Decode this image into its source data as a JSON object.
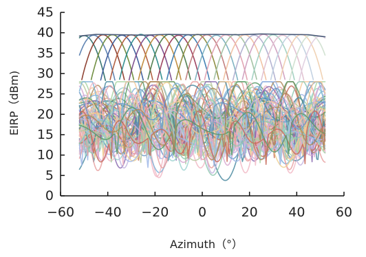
{
  "chart_data": {
    "type": "line",
    "title": "",
    "xlabel": "Azimuth（°）",
    "ylabel": "EIRP（dBm)",
    "xlim": [
      -60,
      60
    ],
    "ylim": [
      0,
      45
    ],
    "xticks": [
      -60,
      -40,
      -20,
      0,
      20,
      40,
      60
    ],
    "yticks": [
      0,
      5,
      10,
      15,
      20,
      25,
      30,
      35,
      40,
      45
    ],
    "grid": false,
    "legend": "none",
    "description_of_series": "Overlapping beam patterns over azimuth -52 to 52 degrees: main-beam series peak near 39.5 dBm, sidelobe series range roughly 2 to 28 dBm",
    "envelope_series": {
      "color": "#4a5a78",
      "x": [
        -52,
        -45,
        -35,
        -25,
        -15,
        -5,
        5,
        15,
        25,
        35,
        45,
        52
      ],
      "y": [
        39.2,
        39.6,
        39.5,
        39.4,
        39.6,
        39.5,
        39.6,
        39.5,
        39.7,
        39.6,
        39.5,
        39.0
      ]
    },
    "main_beam_series": [
      {
        "peak_x": -50,
        "peak_y": 39.3,
        "color": "#2f6f6a"
      },
      {
        "peak_x": -46,
        "peak_y": 39.4,
        "color": "#5a7fb0"
      },
      {
        "peak_x": -42,
        "peak_y": 39.5,
        "color": "#8a3a2a"
      },
      {
        "peak_x": -38,
        "peak_y": 39.5,
        "color": "#6a8a3a"
      },
      {
        "peak_x": -34,
        "peak_y": 39.4,
        "color": "#3a5a9a"
      },
      {
        "peak_x": -30,
        "peak_y": 39.5,
        "color": "#b05a3a"
      },
      {
        "peak_x": -26,
        "peak_y": 39.6,
        "color": "#2a8a8a"
      },
      {
        "peak_x": -22,
        "peak_y": 39.4,
        "color": "#7a4a8a"
      },
      {
        "peak_x": -18,
        "peak_y": 39.5,
        "color": "#c08a3a"
      },
      {
        "peak_x": -14,
        "peak_y": 39.6,
        "color": "#4a7a4a"
      },
      {
        "peak_x": -10,
        "peak_y": 39.4,
        "color": "#9a3a5a"
      },
      {
        "peak_x": -6,
        "peak_y": 39.5,
        "color": "#3a7ab0"
      },
      {
        "peak_x": -2,
        "peak_y": 39.6,
        "color": "#8a8a3a"
      },
      {
        "peak_x": 2,
        "peak_y": 39.5,
        "color": "#c07a7a"
      },
      {
        "peak_x": 6,
        "peak_y": 39.4,
        "color": "#7ab0c0"
      },
      {
        "peak_x": 10,
        "peak_y": 39.5,
        "color": "#e0a0b0"
      },
      {
        "peak_x": 14,
        "peak_y": 39.6,
        "color": "#a0c0a0"
      },
      {
        "peak_x": 18,
        "peak_y": 39.5,
        "color": "#f0c0a0"
      },
      {
        "peak_x": 22,
        "peak_y": 39.4,
        "color": "#b0b0d0"
      },
      {
        "peak_x": 26,
        "peak_y": 39.6,
        "color": "#d0a0c0"
      },
      {
        "peak_x": 30,
        "peak_y": 39.5,
        "color": "#a0d0c0"
      },
      {
        "peak_x": 34,
        "peak_y": 39.4,
        "color": "#e0c0d0"
      },
      {
        "peak_x": 38,
        "peak_y": 39.5,
        "color": "#c0d0e0"
      },
      {
        "peak_x": 42,
        "peak_y": 39.6,
        "color": "#f0d0b0"
      },
      {
        "peak_x": 46,
        "peak_y": 39.4,
        "color": "#d0e0d0"
      },
      {
        "peak_x": 50,
        "peak_y": 39.2,
        "color": "#e0d0e0"
      }
    ],
    "sidelobe_colors": [
      "#7fb3d8",
      "#f2b8c6",
      "#a8d5a2",
      "#f5c99a",
      "#c4b5e0",
      "#9ed3d0",
      "#e8a0a0",
      "#b8c8a0",
      "#f0d090",
      "#a0b8e8",
      "#d8a8d0",
      "#90c8b0",
      "#6a9ac8",
      "#c86a5a",
      "#5a9a6a",
      "#b08a5a",
      "#8a6ab0",
      "#4a8aa0"
    ],
    "sidelobe_range": [
      2,
      28
    ]
  }
}
